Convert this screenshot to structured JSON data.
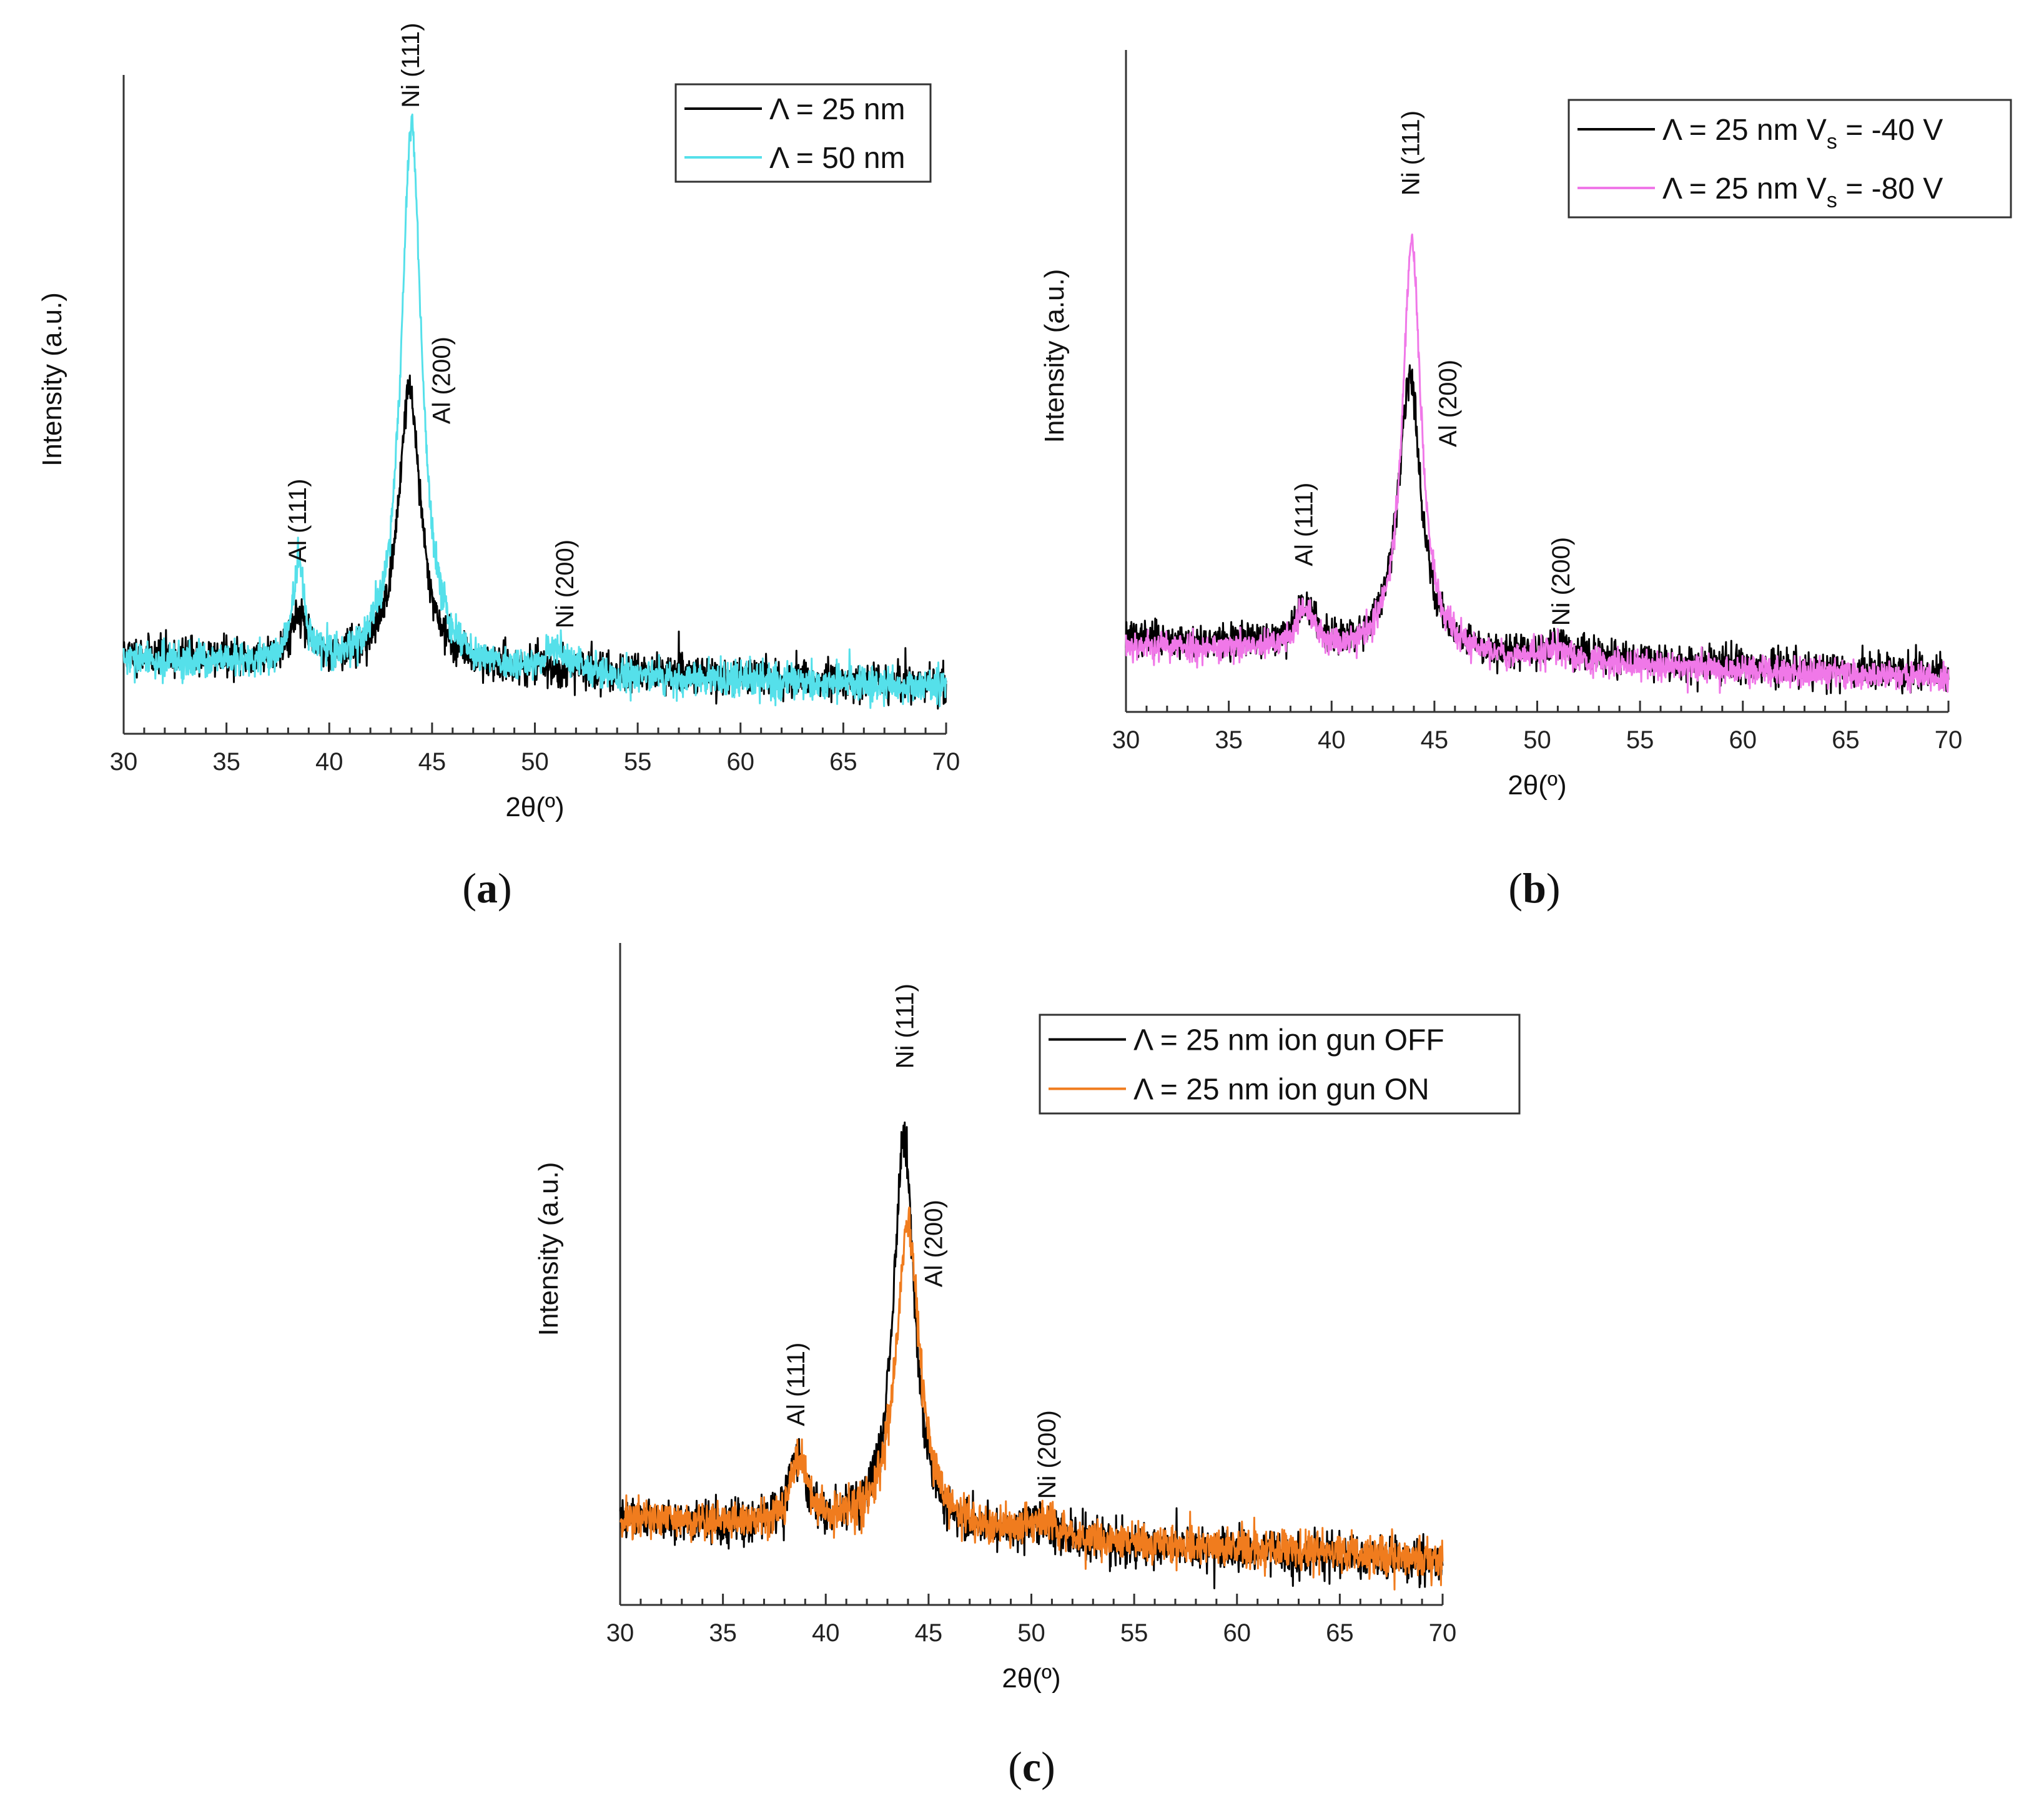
{
  "chart_data": [
    {
      "type": "line",
      "panel": "(a)",
      "panel_letter": "a",
      "xlabel": "2θ(º)",
      "ylabel": "Intensity (a.u.)",
      "xlim": [
        30,
        70
      ],
      "ylim": [
        0,
        1
      ],
      "xticks": [
        30,
        35,
        40,
        45,
        50,
        55,
        60,
        65,
        70
      ],
      "series": [
        {
          "name": "Λ = 25 nm",
          "legend": "Λ = 25 nm",
          "color": "#000000",
          "seed": 11,
          "background": 0.12,
          "background_slope": 0.045,
          "noise": 0.028,
          "peaks": [
            {
              "x": 38.5,
              "height": 0.07,
              "width": 0.45
            },
            {
              "x": 43.9,
              "height": 0.42,
              "width": 0.65
            },
            {
              "x": 51.0,
              "height": 0.0,
              "width": 0.6
            }
          ]
        },
        {
          "name": "Λ = 50 nm",
          "legend": "Λ = 50 nm",
          "color": "#55e0ea",
          "seed": 29,
          "background": 0.11,
          "background_slope": 0.04,
          "noise": 0.026,
          "peaks": [
            {
              "x": 38.5,
              "height": 0.15,
              "width": 0.35
            },
            {
              "x": 44.0,
              "height": 0.83,
              "width": 0.6
            },
            {
              "x": 51.0,
              "height": 0.035,
              "width": 0.7
            }
          ]
        }
      ],
      "peak_labels": [
        {
          "text": "Al (111)",
          "x": 38.5,
          "y": 0.26
        },
        {
          "text": "Ni (111)",
          "x": 44.0,
          "y": 0.95
        },
        {
          "text": "Al (200)",
          "x": 45.5,
          "y": 0.47
        },
        {
          "text": "Ni (200)",
          "x": 51.5,
          "y": 0.16
        }
      ],
      "legend_position": "top-right"
    },
    {
      "type": "line",
      "panel": "(b)",
      "panel_letter": "b",
      "xlabel": "2θ(º)",
      "ylabel": "Intensity (a.u.)",
      "xlim": [
        30,
        70
      ],
      "ylim": [
        0,
        1
      ],
      "xticks": [
        30,
        35,
        40,
        45,
        50,
        55,
        60,
        65,
        70
      ],
      "series": [
        {
          "name": "Λ = 25 nm Vs = -40 V",
          "legend": "Λ = 25 nm   V",
          "legend_sub": "s",
          "legend_tail": " = -40 V",
          "color": "#000000",
          "seed": 37,
          "background": 0.11,
          "background_slope": 0.055,
          "noise": 0.026,
          "peaks": [
            {
              "x": 38.7,
              "height": 0.06,
              "width": 0.55
            },
            {
              "x": 43.8,
              "height": 0.42,
              "width": 0.65
            },
            {
              "x": 51.0,
              "height": 0.02,
              "width": 0.8
            }
          ]
        },
        {
          "name": "Λ = 25 nm Vs = -80 V",
          "legend": "Λ = 25 nm   V",
          "legend_sub": "s",
          "legend_tail": " = -80 V",
          "color": "#f078e8",
          "seed": 53,
          "background": 0.1,
          "background_slope": 0.05,
          "noise": 0.022,
          "peaks": [
            {
              "x": 38.7,
              "height": 0.06,
              "width": 0.55
            },
            {
              "x": 43.9,
              "height": 0.63,
              "width": 0.55
            },
            {
              "x": 51.0,
              "height": 0.02,
              "width": 0.8
            }
          ]
        }
      ],
      "peak_labels": [
        {
          "text": "Al (111)",
          "x": 38.7,
          "y": 0.22
        },
        {
          "text": "Ni (111)",
          "x": 43.9,
          "y": 0.78
        },
        {
          "text": "Al (200)",
          "x": 45.7,
          "y": 0.4
        },
        {
          "text": "Ni (200)",
          "x": 51.2,
          "y": 0.13
        }
      ],
      "legend_position": "top-right"
    },
    {
      "type": "line",
      "panel": "(c)",
      "panel_letter": "c",
      "xlabel": "2θ(º)",
      "ylabel": "Intensity (a.u.)",
      "xlim": [
        30,
        70
      ],
      "ylim": [
        0,
        1
      ],
      "xticks": [
        30,
        35,
        40,
        45,
        50,
        55,
        60,
        65,
        70
      ],
      "series": [
        {
          "name": "Λ = 25 nm ion gun OFF",
          "legend": "Λ = 25 nm   ion gun OFF",
          "color": "#000000",
          "seed": 61,
          "background": 0.13,
          "background_slope": 0.065,
          "noise": 0.032,
          "peaks": [
            {
              "x": 38.6,
              "height": 0.1,
              "width": 0.5
            },
            {
              "x": 43.8,
              "height": 0.6,
              "width": 0.62
            },
            {
              "x": 50.5,
              "height": 0.025,
              "width": 0.8
            }
          ]
        },
        {
          "name": "Λ = 25 nm ion gun ON",
          "legend": "Λ = 25 nm   ion gun ON",
          "color": "#f07c1e",
          "seed": 71,
          "background": 0.13,
          "background_slope": 0.06,
          "noise": 0.03,
          "peaks": [
            {
              "x": 38.7,
              "height": 0.1,
              "width": 0.5
            },
            {
              "x": 44.0,
              "height": 0.46,
              "width": 0.7
            },
            {
              "x": 50.5,
              "height": 0.025,
              "width": 0.8
            }
          ]
        }
      ],
      "peak_labels": [
        {
          "text": "Al (111)",
          "x": 38.6,
          "y": 0.27
        },
        {
          "text": "Ni (111)",
          "x": 43.9,
          "y": 0.81
        },
        {
          "text": "Al (200)",
          "x": 45.3,
          "y": 0.48
        },
        {
          "text": "Ni (200)",
          "x": 50.8,
          "y": 0.16
        }
      ],
      "legend_position": "top-right"
    }
  ]
}
